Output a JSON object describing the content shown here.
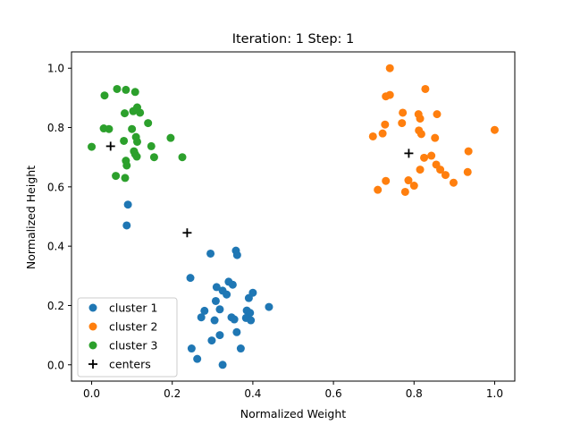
{
  "chart_data": {
    "type": "scatter",
    "title": "Iteration: 1 Step: 1",
    "xlabel": "Normalized Weight",
    "ylabel": "Normalized Height",
    "xlim": [
      -0.05,
      1.05
    ],
    "ylim": [
      -0.055,
      1.055
    ],
    "x_ticks": [
      "0.0",
      "0.2",
      "0.4",
      "0.6",
      "0.8",
      "1.0"
    ],
    "y_ticks": [
      "0.0",
      "0.2",
      "0.4",
      "0.6",
      "0.8",
      "1.0"
    ],
    "grid": false,
    "legend_position": "lower-left",
    "series": [
      {
        "name": "cluster 1",
        "color": "#1f77b4",
        "marker": "circle",
        "points": [
          [
            0.09,
            0.54
          ],
          [
            0.087,
            0.47
          ],
          [
            0.295,
            0.375
          ],
          [
            0.358,
            0.385
          ],
          [
            0.361,
            0.37
          ],
          [
            0.245,
            0.293
          ],
          [
            0.34,
            0.28
          ],
          [
            0.35,
            0.27
          ],
          [
            0.31,
            0.262
          ],
          [
            0.325,
            0.25
          ],
          [
            0.335,
            0.237
          ],
          [
            0.4,
            0.243
          ],
          [
            0.39,
            0.225
          ],
          [
            0.308,
            0.215
          ],
          [
            0.44,
            0.195
          ],
          [
            0.28,
            0.182
          ],
          [
            0.318,
            0.187
          ],
          [
            0.385,
            0.183
          ],
          [
            0.393,
            0.175
          ],
          [
            0.272,
            0.16
          ],
          [
            0.305,
            0.15
          ],
          [
            0.347,
            0.16
          ],
          [
            0.354,
            0.153
          ],
          [
            0.383,
            0.158
          ],
          [
            0.395,
            0.15
          ],
          [
            0.36,
            0.11
          ],
          [
            0.318,
            0.1
          ],
          [
            0.298,
            0.082
          ],
          [
            0.248,
            0.055
          ],
          [
            0.37,
            0.055
          ],
          [
            0.262,
            0.02
          ],
          [
            0.325,
            0.0
          ]
        ]
      },
      {
        "name": "cluster 2",
        "color": "#ff7f0e",
        "marker": "circle",
        "points": [
          [
            0.74,
            1.0
          ],
          [
            0.828,
            0.93
          ],
          [
            0.74,
            0.91
          ],
          [
            0.73,
            0.905
          ],
          [
            0.772,
            0.85
          ],
          [
            0.811,
            0.845
          ],
          [
            0.857,
            0.845
          ],
          [
            0.815,
            0.83
          ],
          [
            0.77,
            0.815
          ],
          [
            0.728,
            0.81
          ],
          [
            0.812,
            0.79
          ],
          [
            1.0,
            0.792
          ],
          [
            0.818,
            0.778
          ],
          [
            0.722,
            0.78
          ],
          [
            0.698,
            0.77
          ],
          [
            0.852,
            0.765
          ],
          [
            0.935,
            0.72
          ],
          [
            0.825,
            0.698
          ],
          [
            0.843,
            0.705
          ],
          [
            0.855,
            0.675
          ],
          [
            0.865,
            0.658
          ],
          [
            0.815,
            0.658
          ],
          [
            0.933,
            0.65
          ],
          [
            0.878,
            0.64
          ],
          [
            0.786,
            0.622
          ],
          [
            0.73,
            0.62
          ],
          [
            0.898,
            0.614
          ],
          [
            0.8,
            0.604
          ],
          [
            0.71,
            0.59
          ],
          [
            0.778,
            0.583
          ]
        ]
      },
      {
        "name": "cluster 3",
        "color": "#2ca02c",
        "marker": "circle",
        "points": [
          [
            0.063,
            0.93
          ],
          [
            0.085,
            0.927
          ],
          [
            0.108,
            0.92
          ],
          [
            0.032,
            0.908
          ],
          [
            0.113,
            0.868
          ],
          [
            0.103,
            0.855
          ],
          [
            0.12,
            0.85
          ],
          [
            0.082,
            0.848
          ],
          [
            0.14,
            0.815
          ],
          [
            0.03,
            0.797
          ],
          [
            0.043,
            0.795
          ],
          [
            0.1,
            0.795
          ],
          [
            0.196,
            0.765
          ],
          [
            0.11,
            0.768
          ],
          [
            0.113,
            0.752
          ],
          [
            0.08,
            0.755
          ],
          [
            0.0,
            0.735
          ],
          [
            0.148,
            0.737
          ],
          [
            0.105,
            0.72
          ],
          [
            0.108,
            0.71
          ],
          [
            0.112,
            0.702
          ],
          [
            0.155,
            0.7
          ],
          [
            0.225,
            0.7
          ],
          [
            0.085,
            0.688
          ],
          [
            0.087,
            0.672
          ],
          [
            0.06,
            0.637
          ],
          [
            0.083,
            0.63
          ]
        ]
      },
      {
        "name": "centers",
        "color": "#000000",
        "marker": "plus",
        "points": [
          [
            0.047,
            0.737
          ],
          [
            0.237,
            0.445
          ],
          [
            0.787,
            0.713
          ]
        ]
      }
    ]
  }
}
